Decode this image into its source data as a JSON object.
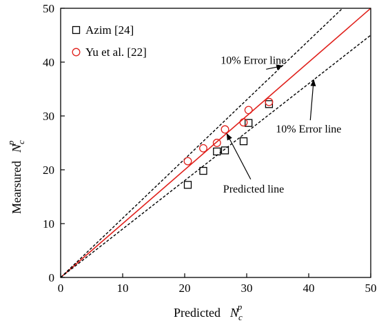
{
  "chart_data": {
    "type": "scatter",
    "xlabel": {
      "text": "Predicted",
      "symbol": "N",
      "sub": "c",
      "sup": "p"
    },
    "ylabel": {
      "text": "Mearsured",
      "symbol": "N",
      "sub": "c",
      "sup": "p"
    },
    "xlim": [
      0,
      50
    ],
    "ylim": [
      0,
      50
    ],
    "xticks": [
      0,
      10,
      20,
      30,
      40,
      50
    ],
    "yticks": [
      0,
      10,
      20,
      30,
      40,
      50
    ],
    "grid": false,
    "legend": {
      "position": "top-left"
    },
    "series": [
      {
        "name": "Azim [24]",
        "marker": "square",
        "color": "#000000",
        "points": [
          [
            20.5,
            17.2
          ],
          [
            23.0,
            19.8
          ],
          [
            25.2,
            23.4
          ],
          [
            26.5,
            23.6
          ],
          [
            29.5,
            25.3
          ],
          [
            30.3,
            28.7
          ],
          [
            33.6,
            32.2
          ]
        ]
      },
      {
        "name": "Yu et al. [22]",
        "marker": "circle",
        "color": "#e0201b",
        "points": [
          [
            20.5,
            21.6
          ],
          [
            23.0,
            24.0
          ],
          [
            25.2,
            25.0
          ],
          [
            26.5,
            27.5
          ],
          [
            29.5,
            28.8
          ],
          [
            30.3,
            31.1
          ],
          [
            33.6,
            32.6
          ]
        ]
      }
    ],
    "reference_lines": [
      {
        "kind": "predicted",
        "slope": 1.0,
        "color": "#e0201b",
        "style": "solid"
      },
      {
        "kind": "upper-error",
        "slope": 1.1,
        "color": "#000000",
        "style": "dashed"
      },
      {
        "kind": "lower-error",
        "slope": 0.9,
        "color": "#000000",
        "style": "dashed"
      }
    ],
    "annotations": [
      {
        "id": "upper",
        "text": "10% Error line",
        "x": 25.8,
        "y": 39.7,
        "arrow_to": [
          35.8,
          39.3
        ]
      },
      {
        "id": "lower",
        "text": "10% Error line",
        "x": 34.7,
        "y": 26.9,
        "arrow_to": [
          40.8,
          36.7
        ]
      },
      {
        "id": "predicted",
        "text": "Predicted line",
        "x": 26.2,
        "y": 15.8,
        "arrow_to": [
          26.8,
          26.7
        ]
      }
    ]
  }
}
